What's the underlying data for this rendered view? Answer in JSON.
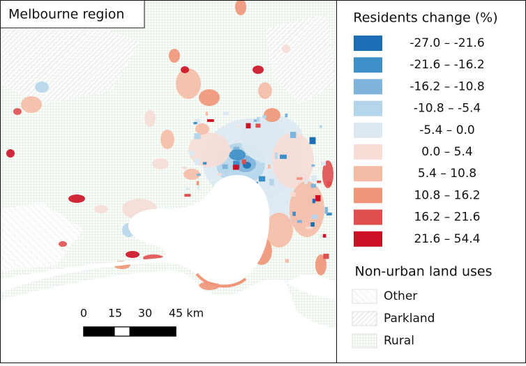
{
  "title": "Melbourne region",
  "legend": {
    "title": "Residents change (%)",
    "classes": [
      {
        "label": "-27.0 – -21.6",
        "color": "#1a6fb5"
      },
      {
        "label": "-21.6 – -16.2",
        "color": "#3d8fc8"
      },
      {
        "label": "-16.2 – -10.8",
        "color": "#7fb5dc"
      },
      {
        "label": "-10.8 – -5.4",
        "color": "#b5d6ea"
      },
      {
        "label": "-5.4 – 0.0",
        "color": "#dde9f2"
      },
      {
        "label": "0.0 – 5.4",
        "color": "#f7ddd6"
      },
      {
        "label": "5.4 – 10.8",
        "color": "#f5bca5"
      },
      {
        "label": "10.8 – 16.2",
        "color": "#f09577"
      },
      {
        "label": "16.2 – 21.6",
        "color": "#e04f4f"
      },
      {
        "label": "21.6 – 54.4",
        "color": "#cc0f24"
      }
    ],
    "land_use_title": "Non-urban land uses",
    "land_uses": [
      {
        "label": "Other"
      },
      {
        "label": "Parkland"
      },
      {
        "label": "Rural"
      }
    ]
  },
  "scale_bar": {
    "labels": [
      "0",
      "15",
      "30",
      "45 km"
    ]
  }
}
